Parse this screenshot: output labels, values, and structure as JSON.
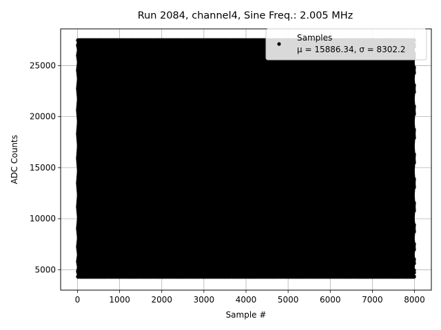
{
  "chart_data": {
    "type": "scatter",
    "title": "Run 2084, channel4, Sine Freq.: 2.005 MHz",
    "xlabel": "Sample #",
    "ylabel": "ADC Counts",
    "xlim": [
      -400,
      8400
    ],
    "ylim": [
      3000,
      28600
    ],
    "xticks": [
      0,
      1000,
      2000,
      3000,
      4000,
      5000,
      6000,
      7000,
      8000
    ],
    "yticks": [
      5000,
      10000,
      15000,
      20000,
      25000
    ],
    "grid": true,
    "legend_position": "top-right",
    "series": [
      {
        "name": "Samples",
        "stats_label": "μ = 15886.34, σ = 8302.2",
        "color": "#000000",
        "marker": "circle",
        "sample_range": [
          0,
          8000
        ],
        "adc_min": 4250,
        "adc_max": 27550
      }
    ]
  }
}
